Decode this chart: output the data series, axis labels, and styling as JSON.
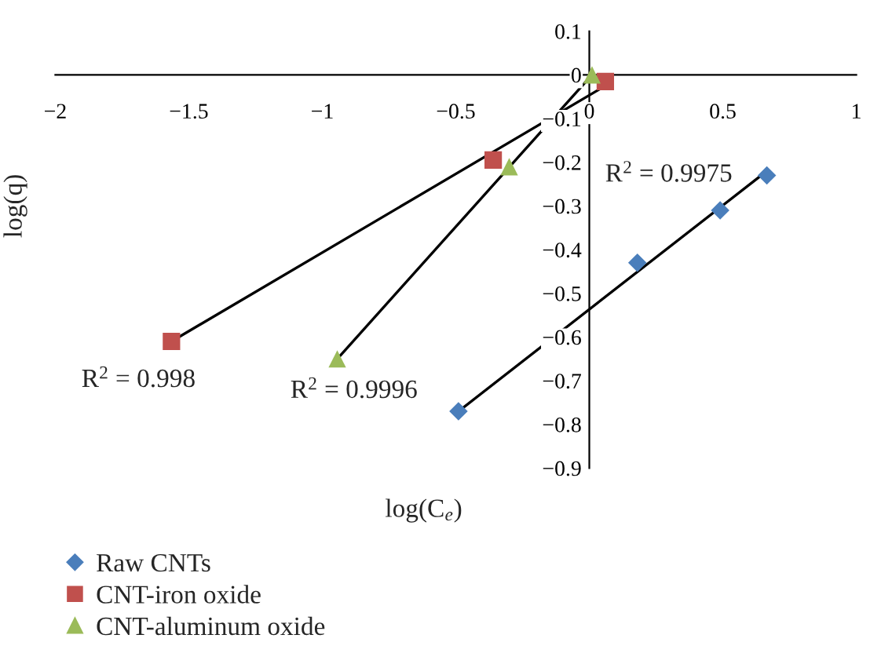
{
  "chart_data": {
    "type": "scatter",
    "xlabel": "log(C$_{e}$)",
    "ylabel": "log(q)",
    "xlim": [
      -2,
      1
    ],
    "ylim": [
      -0.9,
      0.1
    ],
    "xticks": [
      {
        "value": -2,
        "label": "−2"
      },
      {
        "value": -1.5,
        "label": "−1.5"
      },
      {
        "value": -1,
        "label": "−1"
      },
      {
        "value": -0.5,
        "label": "−0.5"
      },
      {
        "value": 0,
        "label": "0"
      },
      {
        "value": 0.5,
        "label": "0.5"
      },
      {
        "value": 1,
        "label": "1"
      }
    ],
    "yticks": [
      {
        "value": 0.1,
        "label": "0.1"
      },
      {
        "value": 0,
        "label": "0"
      },
      {
        "value": -0.1,
        "label": "−0.1"
      },
      {
        "value": -0.2,
        "label": "−0.2"
      },
      {
        "value": -0.3,
        "label": "−0.3"
      },
      {
        "value": -0.4,
        "label": "−0.4"
      },
      {
        "value": -0.5,
        "label": "−0.5"
      },
      {
        "value": -0.6,
        "label": "−0.6"
      },
      {
        "value": -0.7,
        "label": "−0.7"
      },
      {
        "value": -0.8,
        "label": "−0.8"
      },
      {
        "value": -0.9,
        "label": "−0.9"
      }
    ],
    "grid": false,
    "legend": "bottom left",
    "series": [
      {
        "name": "Raw CNTs",
        "color": "#4a7ebb",
        "marker": "diamond",
        "x": [
          -0.49,
          0.18,
          0.49,
          0.665
        ],
        "values": [
          -0.77,
          -0.43,
          -0.31,
          -0.23
        ]
      },
      {
        "name": "CNT-iron oxide",
        "color": "#c0504d",
        "marker": "square",
        "x": [
          -1.565,
          -0.36,
          0.06
        ],
        "values": [
          -0.61,
          -0.195,
          -0.015
        ]
      },
      {
        "name": "CNT-aluminum oxide",
        "color": "#9bbb59",
        "marker": "triangle",
        "x": [
          -0.944,
          -0.3,
          0.01
        ],
        "values": [
          -0.65,
          -0.21,
          0.0
        ]
      },
      {
        "type": "line",
        "color": "#000000",
        "marker": "none",
        "line_style": "solid",
        "x": [
          -0.49,
          0.665
        ],
        "values": [
          -0.77,
          -0.22
        ]
      },
      {
        "type": "line",
        "color": "#000000",
        "marker": "none",
        "line_style": "solid",
        "x": [
          -1.565,
          0.06
        ],
        "values": [
          -0.61,
          -0.025
        ]
      },
      {
        "type": "line",
        "color": "#000000",
        "marker": "none",
        "line_style": "solid",
        "x": [
          -0.944,
          0.01
        ],
        "values": [
          -0.65,
          0.0
        ]
      }
    ],
    "annotations": [
      "R$^{2}$ = 0.998",
      "R$^{2}$ = 0.9996",
      "R$^{2}$ = 0.9975"
    ]
  }
}
